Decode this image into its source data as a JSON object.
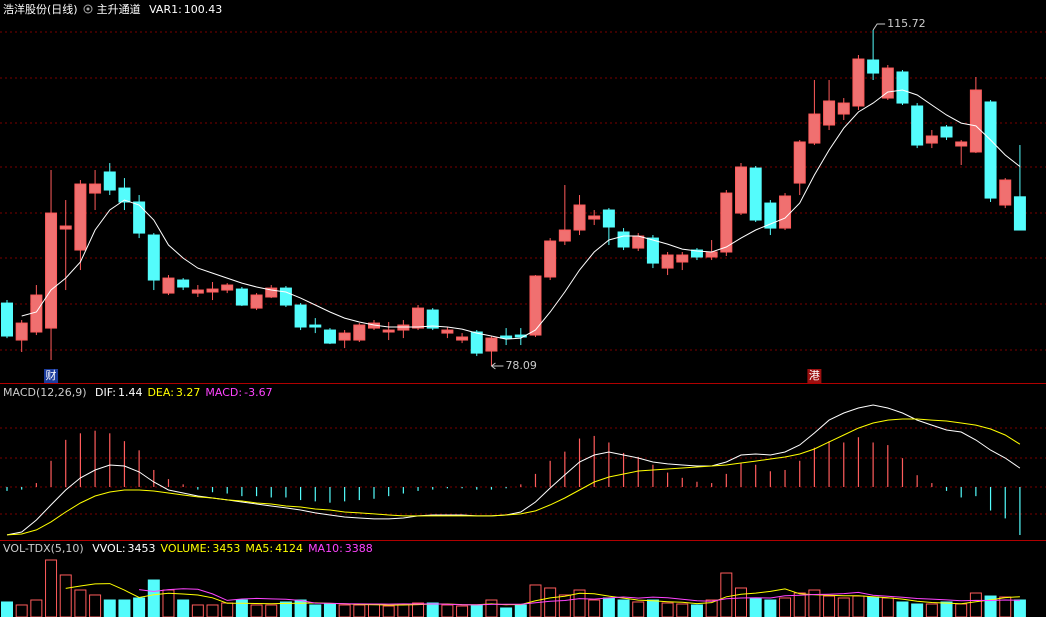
{
  "chart_data": [
    {
      "type": "candlestick",
      "title": "浩洋股份(日线)",
      "subtitle": "主升通道",
      "ylim": [
        76.19,
        119.08
      ],
      "up_color": "#ff5c5c",
      "down_color": "#54fcfc",
      "open": [
        85.14,
        81.0,
        81.9,
        82.34,
        93.43,
        91.08,
        97.46,
        99.82,
        98.02,
        96.46,
        92.76,
        86.26,
        87.72,
        86.26,
        86.38,
        86.6,
        86.71,
        84.58,
        85.82,
        86.82,
        84.92,
        82.68,
        82.12,
        81.0,
        81.0,
        82.34,
        81.9,
        82.12,
        82.34,
        84.36,
        81.78,
        81.0,
        81.9,
        79.77,
        81.45,
        81.56,
        81.56,
        88.06,
        92.09,
        93.32,
        94.55,
        95.56,
        93.1,
        91.3,
        92.42,
        89.06,
        89.74,
        91.08,
        90.3,
        90.86,
        95.22,
        100.26,
        96.34,
        93.54,
        98.58,
        103.06,
        105.08,
        106.31,
        107.21,
        112.36,
        108.1,
        111.02,
        107.21,
        103.06,
        104.86,
        102.73,
        102.06,
        107.66,
        96.12,
        97.04
      ],
      "high": [
        85.48,
        83.24,
        87.16,
        100.04,
        96.68,
        98.92,
        100.04,
        100.82,
        99.14,
        97.24,
        92.98,
        88.28,
        87.94,
        87.16,
        87.5,
        87.38,
        86.94,
        86.26,
        87.16,
        87.05,
        85.14,
        83.46,
        82.34,
        82.12,
        82.9,
        83.24,
        83.02,
        83.24,
        84.92,
        84.58,
        82.46,
        81.78,
        82.12,
        81.45,
        82.34,
        82.34,
        88.28,
        92.42,
        98.36,
        97.24,
        95.56,
        95.78,
        93.54,
        92.98,
        92.76,
        90.86,
        90.86,
        91.3,
        92.2,
        97.8,
        100.82,
        100.49,
        96.68,
        97.46,
        103.4,
        110.12,
        110.12,
        108.1,
        112.92,
        115.72,
        111.8,
        111.24,
        107.54,
        104.52,
        105.08,
        103.4,
        110.46,
        107.88,
        99.14,
        102.84
      ],
      "low": [
        81.22,
        79.66,
        81.56,
        78.76,
        86.6,
        88.84,
        95.56,
        97.24,
        95.56,
        92.42,
        86.6,
        86.04,
        86.6,
        85.82,
        85.48,
        86.26,
        84.81,
        84.36,
        85.7,
        84.7,
        82.12,
        81.78,
        80.55,
        80.1,
        80.78,
        82.12,
        81.0,
        81.22,
        82.12,
        82.12,
        81.22,
        80.66,
        79.21,
        78.09,
        80.44,
        80.44,
        81.34,
        87.72,
        91.64,
        92.76,
        93.88,
        91.64,
        91.08,
        90.97,
        89.06,
        88.28,
        88.84,
        89.96,
        89.96,
        90.41,
        95.0,
        94.22,
        92.76,
        93.32,
        97.24,
        102.84,
        104.52,
        105.64,
        106.76,
        110.12,
        107.88,
        107.32,
        102.5,
        102.5,
        103.4,
        100.6,
        101.94,
        96.46,
        95.78,
        93.32
      ],
      "close": [
        81.45,
        82.9,
        86.04,
        95.22,
        93.77,
        98.47,
        98.47,
        97.8,
        96.46,
        92.98,
        87.72,
        87.94,
        86.94,
        86.6,
        86.71,
        87.16,
        84.92,
        86.04,
        86.82,
        84.92,
        82.46,
        82.46,
        80.66,
        81.78,
        82.68,
        82.9,
        82.12,
        82.68,
        84.58,
        82.34,
        82.12,
        81.34,
        79.54,
        81.22,
        81.22,
        81.34,
        88.17,
        92.09,
        93.32,
        96.12,
        94.89,
        93.66,
        91.42,
        92.65,
        89.62,
        90.52,
        90.52,
        90.3,
        90.86,
        97.46,
        100.38,
        94.44,
        93.54,
        97.13,
        103.18,
        106.31,
        107.77,
        107.54,
        112.47,
        110.9,
        111.46,
        107.54,
        102.84,
        103.85,
        103.74,
        103.18,
        109.0,
        96.9,
        98.92,
        93.32
      ],
      "series": [
        {
          "name": "VAR1:",
          "color": "#ffffff",
          "values": [
            null,
            83.69,
            84.14,
            86.6,
            87.94,
            89.74,
            93.32,
            95.56,
            96.68,
            96.12,
            94.44,
            91.64,
            90.18,
            89.06,
            88.5,
            87.94,
            87.38,
            86.94,
            86.6,
            86.38,
            85.7,
            84.92,
            84.14,
            83.46,
            83.02,
            82.68,
            82.46,
            82.46,
            82.46,
            82.57,
            82.46,
            82.23,
            81.78,
            81.45,
            81.11,
            81.22,
            82.12,
            84.14,
            86.38,
            88.84,
            90.86,
            92.2,
            92.65,
            92.65,
            92.2,
            91.75,
            91.19,
            90.97,
            90.86,
            91.42,
            92.42,
            93.32,
            93.99,
            94.66,
            96.34,
            99.48,
            102.28,
            104.74,
            106.54,
            107.54,
            108.78,
            109.0,
            108.44,
            107.32,
            106.2,
            105.3,
            104.98,
            103.4,
            101.72,
            100.43
          ]
        }
      ],
      "markers": [
        {
          "label": "财",
          "index": 3,
          "color": "#1c3c9c"
        },
        {
          "label": "港",
          "index": 55,
          "color": "#9c1010"
        }
      ]
    },
    {
      "type": "macd",
      "title": "MACD(12,26,9)",
      "ylim": [
        -4.05,
        7.79
      ],
      "up_color": "#ff5c5c",
      "down_color": "#54fcfc",
      "series": [
        {
          "name": "DIF:",
          "color": "#ffffff",
          "values": [
            -3.66,
            -3.44,
            -2.52,
            -1.37,
            -0.23,
            0.69,
            1.3,
            1.68,
            1.6,
            1.15,
            0.38,
            -0.23,
            -0.46,
            -0.69,
            -0.84,
            -0.99,
            -1.15,
            -1.3,
            -1.45,
            -1.6,
            -1.76,
            -1.98,
            -2.14,
            -2.29,
            -2.37,
            -2.44,
            -2.44,
            -2.37,
            -2.21,
            -2.14,
            -2.14,
            -2.14,
            -2.21,
            -2.21,
            -2.14,
            -1.91,
            -1.15,
            -0.08,
            0.92,
            1.91,
            2.44,
            2.67,
            2.44,
            2.21,
            1.91,
            1.76,
            1.68,
            1.6,
            1.6,
            1.91,
            2.44,
            2.52,
            2.44,
            2.67,
            3.21,
            4.12,
            5.11,
            5.65,
            6.03,
            6.26,
            6.03,
            5.65,
            5.11,
            4.73,
            4.35,
            4.2,
            3.59,
            2.82,
            2.21,
            1.44
          ]
        },
        {
          "name": "DEA:",
          "color": "#ffff00",
          "values": [
            -3.66,
            -3.59,
            -3.28,
            -2.67,
            -1.91,
            -1.22,
            -0.69,
            -0.38,
            -0.23,
            -0.23,
            -0.31,
            -0.46,
            -0.61,
            -0.76,
            -0.84,
            -0.99,
            -1.07,
            -1.22,
            -1.3,
            -1.45,
            -1.53,
            -1.68,
            -1.76,
            -1.91,
            -1.98,
            -2.06,
            -2.14,
            -2.21,
            -2.21,
            -2.21,
            -2.21,
            -2.21,
            -2.21,
            -2.21,
            -2.14,
            -2.06,
            -1.83,
            -1.37,
            -0.84,
            -0.23,
            0.38,
            0.76,
            0.99,
            1.22,
            1.3,
            1.37,
            1.45,
            1.53,
            1.6,
            1.68,
            1.83,
            1.98,
            2.14,
            2.29,
            2.52,
            2.9,
            3.44,
            3.97,
            4.5,
            4.89,
            5.11,
            5.19,
            5.19,
            5.11,
            5.04,
            4.89,
            4.73,
            4.43,
            3.97,
            3.27
          ]
        },
        {
          "name": "MACD:",
          "color": "#ff44ff",
          "values": [
            -0.3,
            -0.2,
            0.3,
            2.0,
            3.6,
            4.1,
            4.3,
            4.1,
            3.5,
            2.8,
            1.3,
            0.6,
            0.2,
            -0.2,
            -0.4,
            -0.5,
            -0.7,
            -0.7,
            -0.8,
            -0.8,
            -1.0,
            -1.1,
            -1.2,
            -1.1,
            -1.0,
            -0.9,
            -0.7,
            -0.5,
            -0.3,
            -0.2,
            -0.1,
            -0.1,
            -0.2,
            -0.2,
            -0.1,
            0.2,
            1.0,
            2.0,
            2.7,
            3.7,
            3.9,
            3.4,
            2.6,
            2.3,
            1.7,
            1.1,
            0.7,
            0.4,
            0.3,
            1.0,
            1.8,
            1.7,
            1.2,
            1.3,
            2.0,
            3.0,
            3.5,
            3.4,
            3.8,
            3.4,
            3.2,
            2.2,
            0.9,
            0.3,
            -0.3,
            -0.8,
            -0.7,
            -1.8,
            -2.4,
            -3.67
          ]
        }
      ]
    },
    {
      "type": "volume",
      "title": "VOL-TDX(5,10)",
      "ylim": [
        0,
        15430
      ],
      "up_color": "#ff5c5c",
      "down_color": "#54fcfc",
      "alias": {
        "name": "VVOL:",
        "color": "#ffffff"
      },
      "series": [
        {
          "name": "VOLUME:",
          "color": "#ffff00",
          "values": [
            3050,
            2440,
            3450,
            11570,
            8530,
            5480,
            4470,
            3450,
            3450,
            3860,
            7510,
            5480,
            3450,
            2440,
            2440,
            2840,
            3450,
            2440,
            2440,
            3050,
            3450,
            2440,
            2640,
            2440,
            2440,
            2640,
            2230,
            2640,
            2840,
            2840,
            2440,
            2230,
            2440,
            3450,
            1830,
            2440,
            6500,
            5890,
            4470,
            5480,
            3450,
            3860,
            3450,
            3050,
            3450,
            2840,
            2640,
            2440,
            3450,
            8930,
            5890,
            3860,
            3450,
            3860,
            4870,
            5480,
            4260,
            3860,
            4260,
            4060,
            3860,
            3050,
            2640,
            2640,
            3050,
            2640,
            4870,
            4260,
            4060,
            3453
          ]
        },
        {
          "name": "MA5:",
          "color": "#ffff00",
          "values": [
            null,
            null,
            null,
            null,
            5810,
            6290,
            6720,
            6780,
            5460,
            3950,
            4530,
            4830,
            4670,
            4470,
            3900,
            2800,
            2800,
            2740,
            2670,
            2760,
            2810,
            2860,
            2760,
            2690,
            2530,
            2490,
            2420,
            2440,
            2520,
            2630,
            2640,
            2520,
            2480,
            2660,
            2500,
            2520,
            3280,
            3870,
            4230,
            4810,
            4740,
            4250,
            3840,
            3440,
            3280,
            3100,
            2990,
            2720,
            2920,
            4100,
            4620,
            4860,
            5200,
            5700,
            4710,
            4520,
            4400,
            4310,
            4300,
            4100,
            3900,
            3630,
            3200,
            2950,
            2830,
            2670,
            3100,
            3480,
            3940,
            4124
          ]
        },
        {
          "name": "MA10:",
          "color": "#ff44ff",
          "values": [
            null,
            null,
            null,
            null,
            null,
            null,
            null,
            null,
            null,
            5560,
            5170,
            5560,
            5730,
            5620,
            4680,
            3380,
            3660,
            3780,
            3670,
            3610,
            3360,
            2830,
            2780,
            2710,
            2650,
            2630,
            2610,
            2650,
            2640,
            2660,
            2580,
            2500,
            2450,
            2550,
            2570,
            2580,
            2900,
            3180,
            3360,
            3730,
            3630,
            3880,
            4060,
            3840,
            4050,
            3920,
            3620,
            3280,
            3180,
            3690,
            3860,
            3920,
            3860,
            4310,
            4400,
            4570,
            4630,
            4750,
            5000,
            4400,
            4210,
            4020,
            3760,
            3630,
            3470,
            3290,
            3370,
            3340,
            3450,
            3388
          ]
        }
      ]
    }
  ]
}
